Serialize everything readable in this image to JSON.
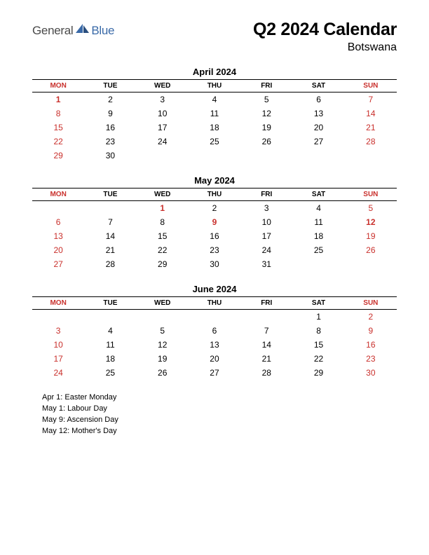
{
  "logo": {
    "general": "General",
    "blue": "Blue"
  },
  "title": "Q2 2024 Calendar",
  "subtitle": "Botswana",
  "colors": {
    "holiday_red": "#c9302c",
    "logo_gray": "#4a4a4a",
    "logo_blue": "#3a6aa8",
    "rule": "#000000",
    "background": "#ffffff"
  },
  "typography": {
    "title_fontsize": 25,
    "subtitle_fontsize": 16,
    "month_title_fontsize": 13,
    "header_fontsize": 10,
    "cell_fontsize": 12,
    "holiday_fontsize": 11
  },
  "day_headers": [
    "MON",
    "TUE",
    "WED",
    "THU",
    "FRI",
    "SAT",
    "SUN"
  ],
  "months": [
    {
      "title": "April 2024",
      "weeks": [
        [
          {
            "d": 1,
            "h": true
          },
          {
            "d": 2
          },
          {
            "d": 3
          },
          {
            "d": 4
          },
          {
            "d": 5
          },
          {
            "d": 6
          },
          {
            "d": 7
          }
        ],
        [
          {
            "d": 8
          },
          {
            "d": 9
          },
          {
            "d": 10
          },
          {
            "d": 11
          },
          {
            "d": 12
          },
          {
            "d": 13
          },
          {
            "d": 14
          }
        ],
        [
          {
            "d": 15
          },
          {
            "d": 16
          },
          {
            "d": 17
          },
          {
            "d": 18
          },
          {
            "d": 19
          },
          {
            "d": 20
          },
          {
            "d": 21
          }
        ],
        [
          {
            "d": 22
          },
          {
            "d": 23
          },
          {
            "d": 24
          },
          {
            "d": 25
          },
          {
            "d": 26
          },
          {
            "d": 27
          },
          {
            "d": 28
          }
        ],
        [
          {
            "d": 29
          },
          {
            "d": 30
          },
          null,
          null,
          null,
          null,
          null
        ]
      ]
    },
    {
      "title": "May 2024",
      "weeks": [
        [
          null,
          null,
          {
            "d": 1,
            "h": true
          },
          {
            "d": 2
          },
          {
            "d": 3
          },
          {
            "d": 4
          },
          {
            "d": 5
          }
        ],
        [
          {
            "d": 6
          },
          {
            "d": 7
          },
          {
            "d": 8
          },
          {
            "d": 9,
            "h": true
          },
          {
            "d": 10
          },
          {
            "d": 11
          },
          {
            "d": 12,
            "h": true
          }
        ],
        [
          {
            "d": 13
          },
          {
            "d": 14
          },
          {
            "d": 15
          },
          {
            "d": 16
          },
          {
            "d": 17
          },
          {
            "d": 18
          },
          {
            "d": 19
          }
        ],
        [
          {
            "d": 20
          },
          {
            "d": 21
          },
          {
            "d": 22
          },
          {
            "d": 23
          },
          {
            "d": 24
          },
          {
            "d": 25
          },
          {
            "d": 26
          }
        ],
        [
          {
            "d": 27
          },
          {
            "d": 28
          },
          {
            "d": 29
          },
          {
            "d": 30
          },
          {
            "d": 31
          },
          null,
          null
        ]
      ]
    },
    {
      "title": "June 2024",
      "weeks": [
        [
          null,
          null,
          null,
          null,
          null,
          {
            "d": 1
          },
          {
            "d": 2
          }
        ],
        [
          {
            "d": 3
          },
          {
            "d": 4
          },
          {
            "d": 5
          },
          {
            "d": 6
          },
          {
            "d": 7
          },
          {
            "d": 8
          },
          {
            "d": 9
          }
        ],
        [
          {
            "d": 10
          },
          {
            "d": 11
          },
          {
            "d": 12
          },
          {
            "d": 13
          },
          {
            "d": 14
          },
          {
            "d": 15
          },
          {
            "d": 16
          }
        ],
        [
          {
            "d": 17
          },
          {
            "d": 18
          },
          {
            "d": 19
          },
          {
            "d": 20
          },
          {
            "d": 21
          },
          {
            "d": 22
          },
          {
            "d": 23
          }
        ],
        [
          {
            "d": 24
          },
          {
            "d": 25
          },
          {
            "d": 26
          },
          {
            "d": 27
          },
          {
            "d": 28
          },
          {
            "d": 29
          },
          {
            "d": 30
          }
        ]
      ]
    }
  ],
  "holidays": [
    "Apr 1: Easter Monday",
    "May 1: Labour Day",
    "May 9: Ascension Day",
    "May 12: Mother's Day"
  ]
}
